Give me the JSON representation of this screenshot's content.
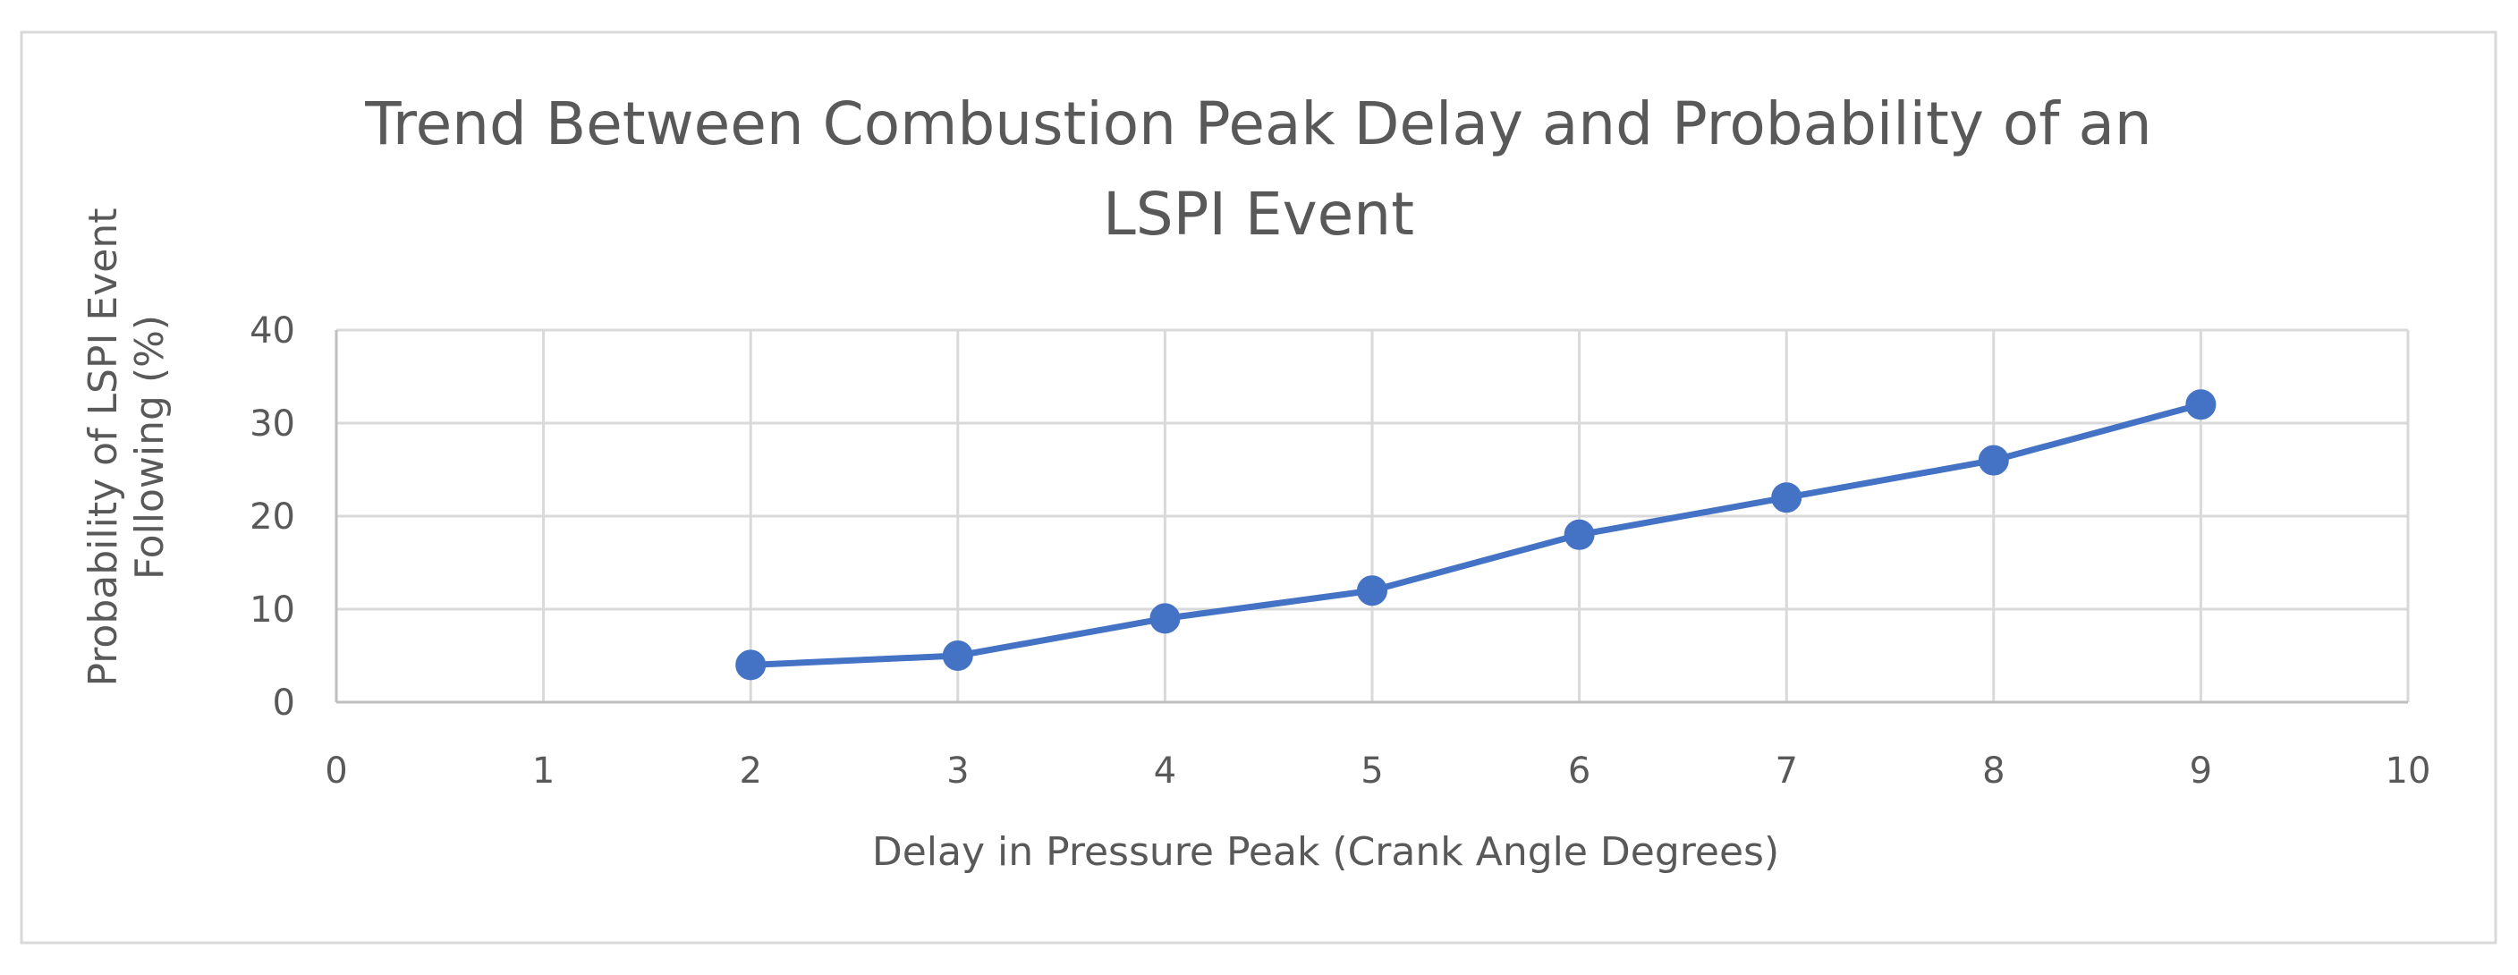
{
  "chart_data": {
    "type": "scatter",
    "mode": "lines+markers",
    "title": "Trend Between Combustion Peak Delay and Probability of an LSPI Event",
    "title_lines": [
      "Trend Between Combustion Peak Delay and Probability of an",
      "LSPI Event"
    ],
    "xlabel": "Delay in Pressure Peak (Crank Angle Degrees)",
    "ylabel": "Probability of LSPI Event Following (%)",
    "ylabel_lines": [
      "Probability of LSPI Event",
      "Following (%)"
    ],
    "xlim": [
      0,
      10
    ],
    "ylim": [
      0,
      40
    ],
    "xticks": [
      0,
      1,
      2,
      3,
      4,
      5,
      6,
      7,
      8,
      9,
      10
    ],
    "yticks": [
      0,
      10,
      20,
      30,
      40
    ],
    "grid": true,
    "legend": "none",
    "series": [
      {
        "name": "Probability of LSPI Event",
        "color": "#4472C4",
        "x": [
          2,
          3,
          4,
          5,
          6,
          7,
          8,
          9
        ],
        "y": [
          4,
          5,
          9,
          12,
          18,
          22,
          26,
          32
        ]
      }
    ]
  }
}
